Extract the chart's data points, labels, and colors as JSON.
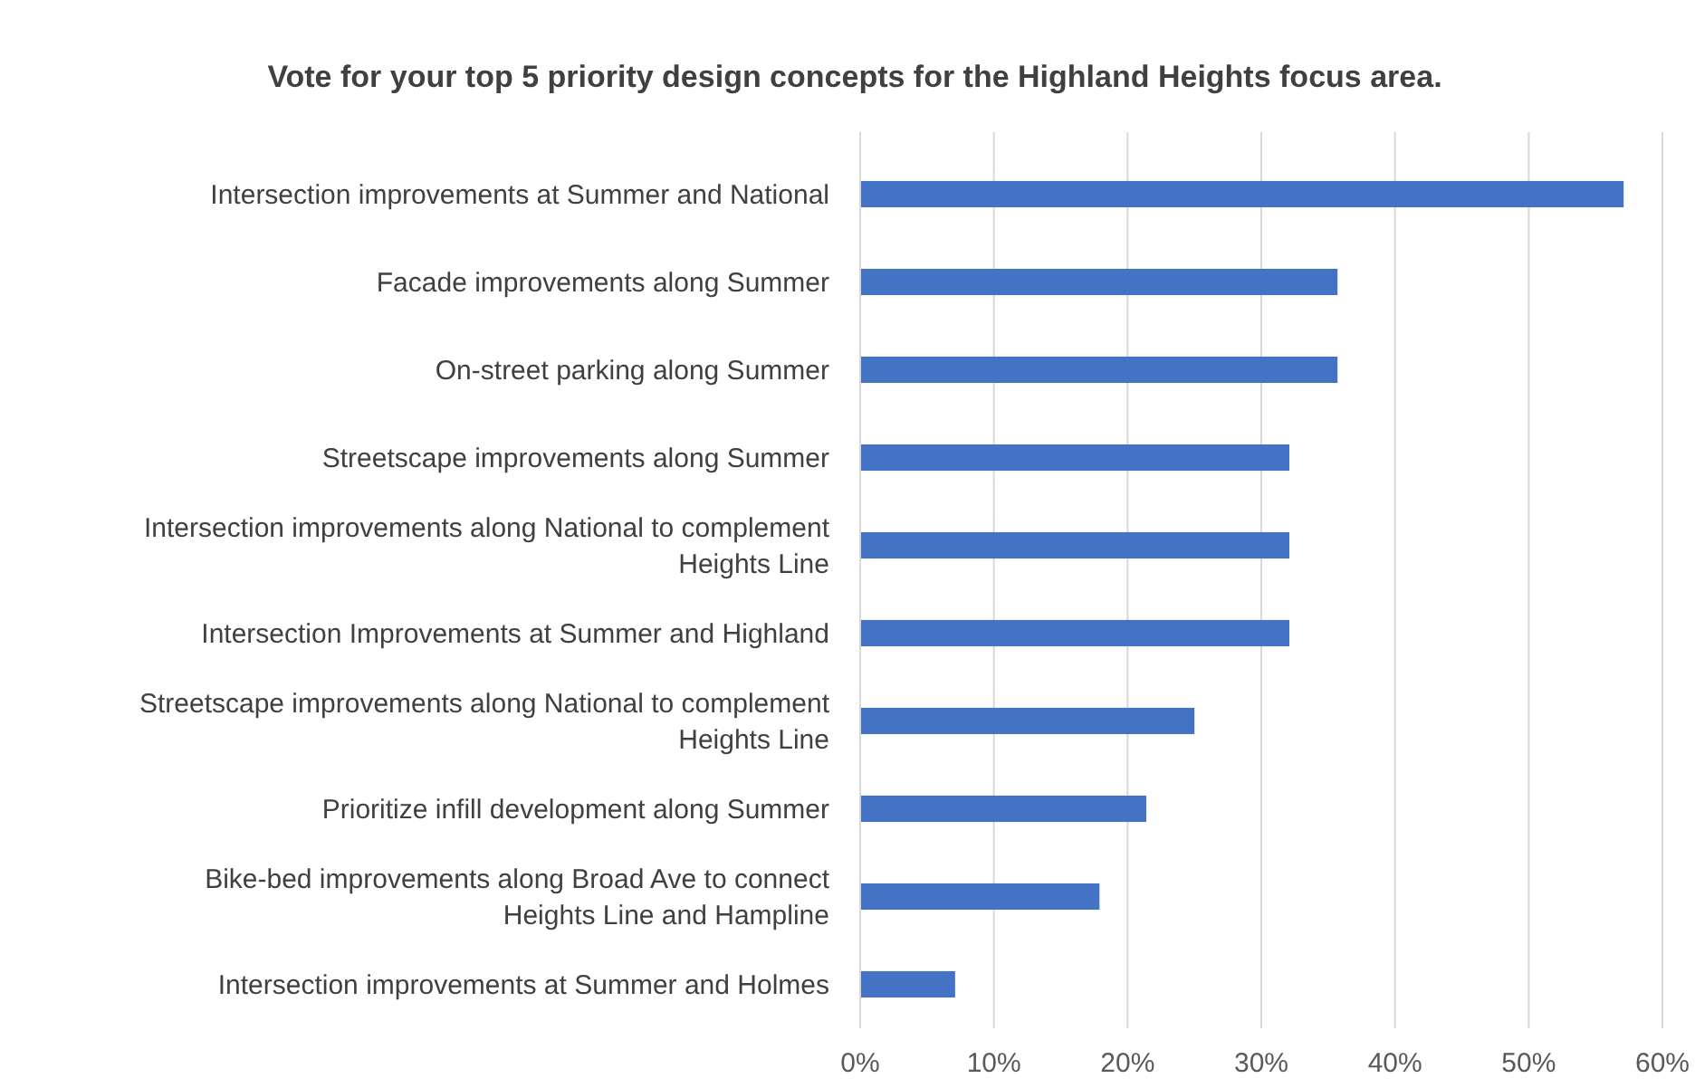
{
  "chart_data": {
    "type": "bar",
    "orientation": "horizontal",
    "title": "Vote for your top 5 priority design concepts for the Highland Heights focus area.",
    "categories": [
      "Intersection improvements at Summer and National",
      "Facade improvements along Summer",
      "On-street parking along Summer",
      "Streetscape improvements along Summer",
      "Intersection improvements along National to complement Heights Line",
      "Intersection Improvements at Summer and Highland",
      "Streetscape improvements along National to complement Heights Line",
      "Prioritize infill development along Summer",
      "Bike-bed improvements along Broad Ave to connect Heights Line and Hampline",
      "Intersection improvements at Summer and Holmes"
    ],
    "values": [
      57.1,
      35.7,
      35.7,
      32.1,
      32.1,
      32.1,
      25,
      21.4,
      17.9,
      7.1
    ],
    "color": "#4472c4",
    "xlim": [
      0,
      60
    ],
    "xticks": [
      {
        "value": 0,
        "label": "0%"
      },
      {
        "value": 10,
        "label": "10%"
      },
      {
        "value": 20,
        "label": "20%"
      },
      {
        "value": 30,
        "label": "30%"
      },
      {
        "value": 40,
        "label": "40%"
      },
      {
        "value": 50,
        "label": "50%"
      },
      {
        "value": 60,
        "label": "60%"
      }
    ],
    "grid": "x"
  }
}
